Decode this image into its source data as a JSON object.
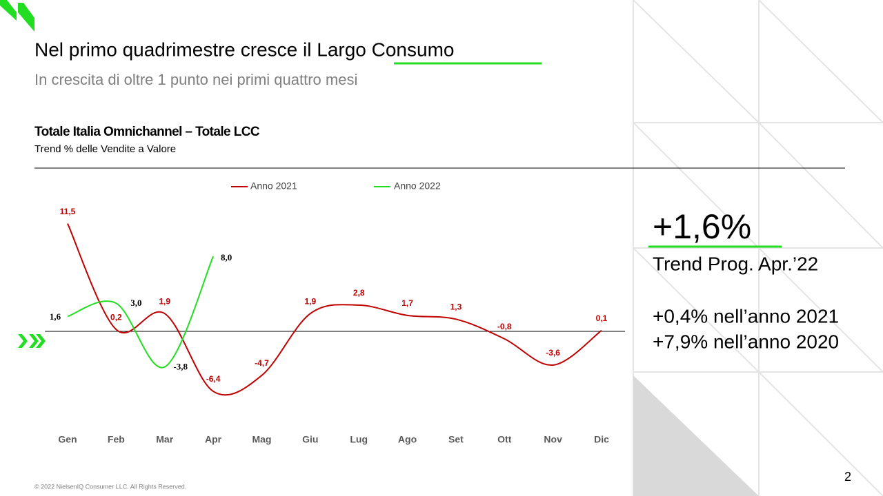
{
  "title": "Nel primo quadrimestre cresce il Largo Consumo",
  "subtitle": "In crescita di oltre 1 punto nei primi quattro mesi",
  "kpi": {
    "value": "+1,6%",
    "label": "Trend Prog. Apr.’22",
    "notes": [
      "+0,4% nell’anno 2021",
      "+7,9% nell’anno 2020"
    ]
  },
  "footer": "© 2022 NielsenIQ Consumer LLC. All Rights Reserved.",
  "page_number": "2",
  "chart_data": {
    "type": "line",
    "title": "Totale Italia  Omnichannel – Totale LCC",
    "subtitle": "Trend % delle Vendite a Valore",
    "categories": [
      "Gen",
      "Feb",
      "Mar",
      "Apr",
      "Mag",
      "Giu",
      "Lug",
      "Ago",
      "Set",
      "Ott",
      "Nov",
      "Dic"
    ],
    "ylim": [
      -8,
      12
    ],
    "series": [
      {
        "name": "Anno 2021",
        "color": "#c00000",
        "values": [
          11.5,
          0.2,
          1.9,
          -6.4,
          -4.7,
          1.9,
          2.8,
          1.7,
          1.3,
          -0.8,
          -3.6,
          0.1
        ],
        "value_labels": [
          "11,5",
          "0,2",
          "1,9",
          "-6,4",
          "-4,7",
          "1,9",
          "2,8",
          "1,7",
          "1,3",
          "-0,8",
          "-3,6",
          "0,1"
        ]
      },
      {
        "name": "Anno 2022",
        "color": "#22dd22",
        "values": [
          1.6,
          3.0,
          -3.8,
          8.0,
          null,
          null,
          null,
          null,
          null,
          null,
          null,
          null
        ],
        "value_labels": [
          "1,6",
          "3,0",
          "-3,8",
          "8,0",
          null,
          null,
          null,
          null,
          null,
          null,
          null,
          null
        ]
      }
    ]
  }
}
